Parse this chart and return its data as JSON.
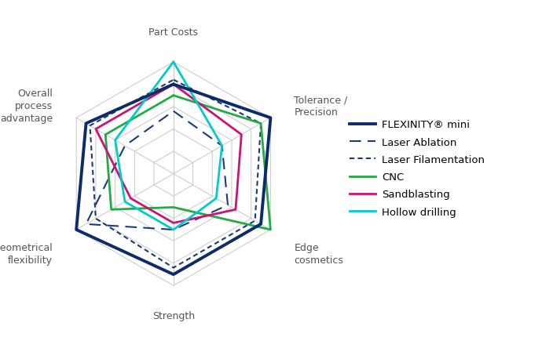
{
  "categories": [
    "Part Costs",
    "Tolerance /\nPrecision",
    "Edge\ncosmetics",
    "Strength",
    "Geometrical\nflexibility",
    "Overall\nprocess\nadvantage"
  ],
  "num_vars": 6,
  "series": {
    "FLEXINITY® mini": {
      "values": [
        4.0,
        5.0,
        4.5,
        4.5,
        5.0,
        4.5
      ],
      "color": "#0d2b6b",
      "linewidth": 2.8,
      "linestyle": "solid",
      "zorder": 10
    },
    "Laser Ablation": {
      "values": [
        2.8,
        2.5,
        2.8,
        2.5,
        4.5,
        2.5
      ],
      "color": "#1a3a7a",
      "linewidth": 1.5,
      "linestyle": "dashed",
      "zorder": 5
    },
    "Laser Filamentation": {
      "values": [
        4.2,
        4.5,
        4.2,
        4.2,
        4.0,
        4.3
      ],
      "color": "#1a3a7a",
      "linewidth": 1.5,
      "linestyle": "dotted",
      "zorder": 5
    },
    "CNC": {
      "values": [
        3.5,
        4.5,
        5.0,
        1.5,
        3.2,
        3.5
      ],
      "color": "#22aa44",
      "linewidth": 2.0,
      "linestyle": "solid",
      "zorder": 7
    },
    "Sandblasting": {
      "values": [
        4.0,
        3.5,
        3.2,
        2.2,
        2.2,
        4.0
      ],
      "color": "#cc1177",
      "linewidth": 2.0,
      "linestyle": "solid",
      "zorder": 7
    },
    "Hollow drilling": {
      "values": [
        5.0,
        2.5,
        2.2,
        2.5,
        2.5,
        3.0
      ],
      "color": "#00cccc",
      "linewidth": 2.0,
      "linestyle": "solid",
      "zorder": 7
    }
  },
  "max_value": 5.0,
  "grid_levels": [
    1,
    2,
    3,
    4,
    5
  ],
  "grid_color": "#c8c8c8",
  "background_color": "#ffffff",
  "label_fontsize": 9,
  "legend_fontsize": 9.5
}
